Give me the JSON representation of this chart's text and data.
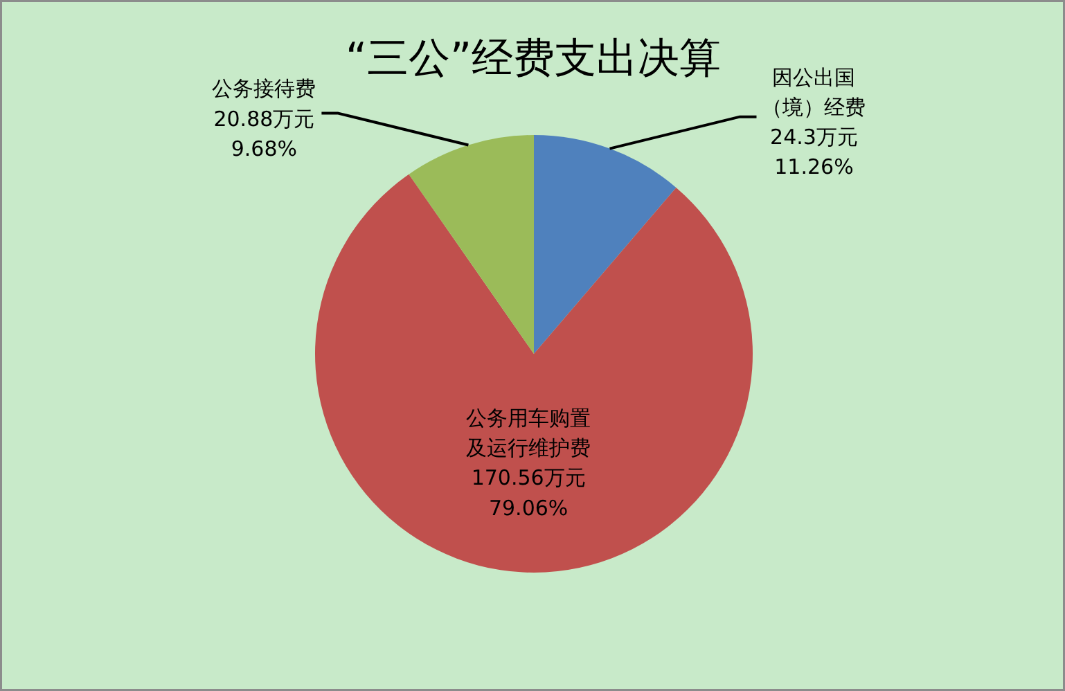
{
  "chart_data": {
    "type": "pie",
    "title": "“三公”经费支出决算",
    "categories": [
      "因公出国（境）经费",
      "公务用车购置及运行维护费",
      "公务接待费"
    ],
    "values": [
      24.3,
      170.56,
      20.88
    ],
    "colors": [
      "#4f81bd",
      "#c0504d",
      "#9bbb59"
    ],
    "value_labels": [
      "24.3万元\n11.26%",
      "170.56万元\n79.06%",
      "20.88万元\n9.68%"
    ]
  }
}
